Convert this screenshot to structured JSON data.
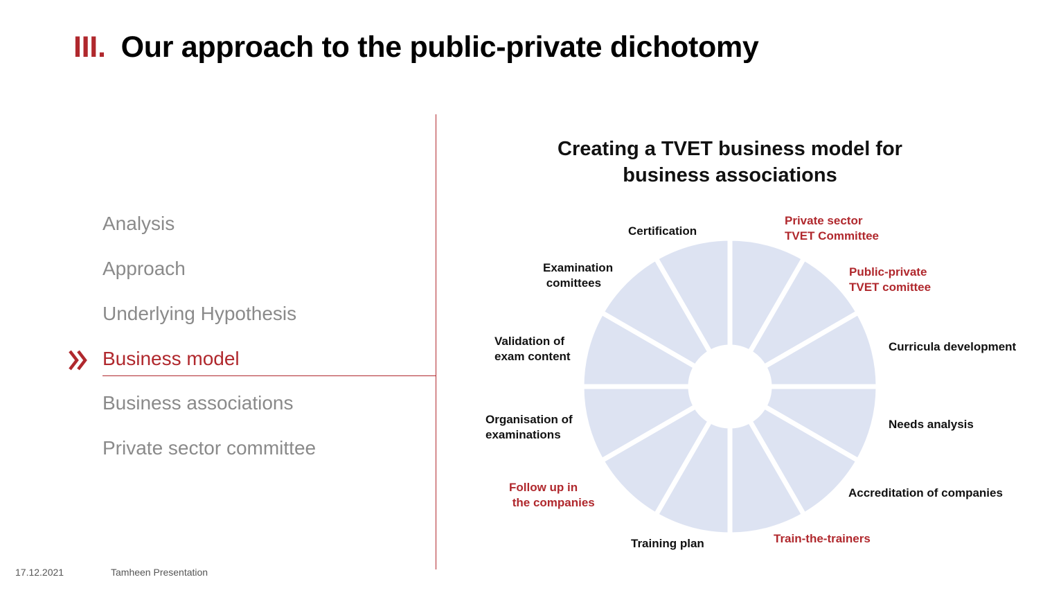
{
  "slide": {
    "title_number": "III.",
    "title_text": "Our approach to the public-private dichotomy"
  },
  "agenda": {
    "items": [
      {
        "label": "Analysis",
        "active": false
      },
      {
        "label": "Approach",
        "active": false
      },
      {
        "label": "Underlying Hypothesis",
        "active": false
      },
      {
        "label": "Business model",
        "active": true
      },
      {
        "label": "Business associations",
        "active": false
      },
      {
        "label": "Private sector committee",
        "active": false
      }
    ],
    "active_icon": "double-chevron-right-icon"
  },
  "diagram": {
    "title": "Creating a TVET business model for business associations",
    "segments": [
      {
        "label": "Private sector\nTVET Committee",
        "highlight": true
      },
      {
        "label": "Public-private\nTVET comittee",
        "highlight": true
      },
      {
        "label": "Curricula development",
        "highlight": false
      },
      {
        "label": "Needs analysis",
        "highlight": false
      },
      {
        "label": "Accreditation of companies",
        "highlight": false
      },
      {
        "label": "Train-the-trainers",
        "highlight": true
      },
      {
        "label": "Training plan",
        "highlight": false
      },
      {
        "label": "Follow up in\n the companies",
        "highlight": true
      },
      {
        "label": "Organisation of\nexaminations",
        "highlight": false
      },
      {
        "label": "Validation of\nexam content",
        "highlight": false
      },
      {
        "label": "Examination\n comittees",
        "highlight": false
      },
      {
        "label": "Certification",
        "highlight": false
      }
    ]
  },
  "footer": {
    "date": "17.12.2021",
    "presentation": "Tamheen Presentation"
  },
  "colors": {
    "accent": "#b0282d",
    "segment_fill": "#dde3f2",
    "muted_text": "#8a8a8a"
  }
}
